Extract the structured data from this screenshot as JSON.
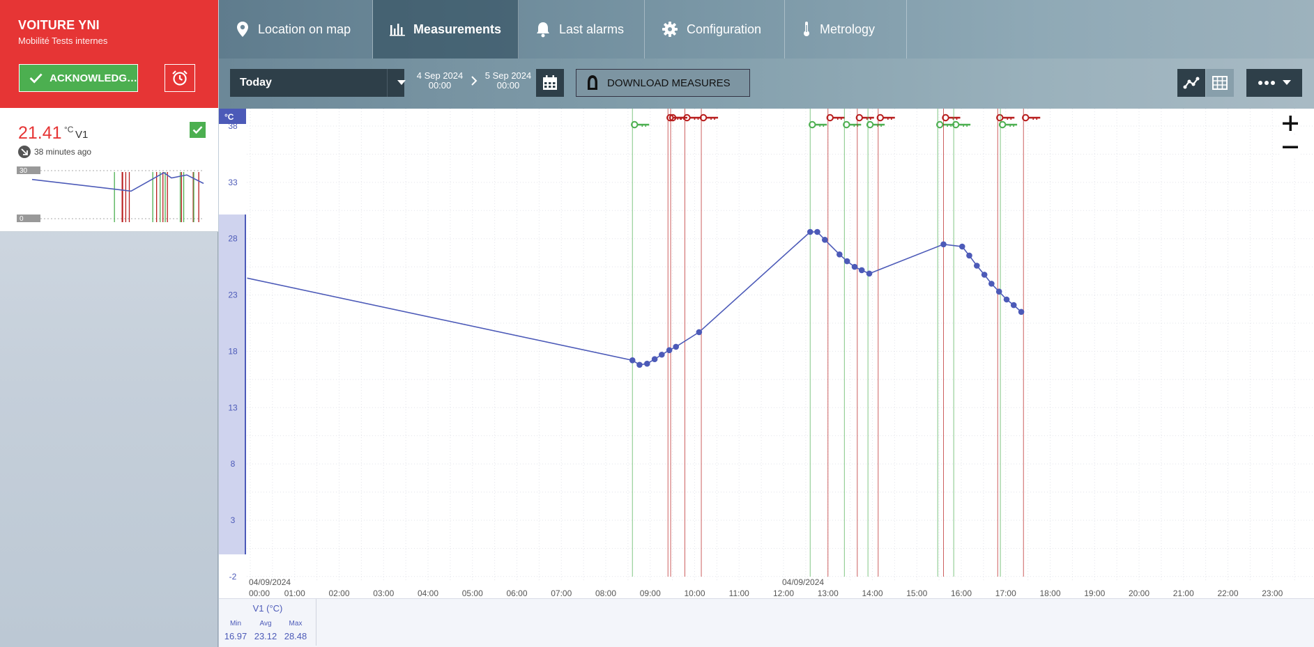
{
  "device": {
    "title": "VOITURE YNI",
    "subtitle": "Mobilité Tests internes",
    "acknowledge_label": "ACKNOWLEDG…",
    "header_color": "#e63535"
  },
  "sensor": {
    "value": "21.41",
    "unit": "°C",
    "name": "V1",
    "last_update": "38 minutes ago",
    "spark_max_label": "30",
    "spark_min_label": "0",
    "spark_values": [
      24.5,
      17.2,
      28.7,
      25.4,
      27.3,
      22.0
    ]
  },
  "nav": {
    "tabs": [
      {
        "label": "Location on map",
        "icon": "map-pin-icon"
      },
      {
        "label": "Measurements",
        "icon": "bar-chart-icon",
        "active": true
      },
      {
        "label": "Last alarms",
        "icon": "bell-icon"
      },
      {
        "label": "Configuration",
        "icon": "gear-icon"
      },
      {
        "label": "Metrology",
        "icon": "thermometer-icon"
      }
    ]
  },
  "toolbar": {
    "period": "Today",
    "start_date": "4 Sep 2024",
    "start_time": "00:00",
    "end_date": "5 Sep 2024",
    "end_time": "00:00",
    "download_label": "DOWNLOAD MEASURES"
  },
  "chart_data": {
    "type": "line",
    "y_unit_label": "°C",
    "ylim": [
      -2,
      40
    ],
    "y_ticks": [
      38,
      33,
      28,
      23,
      18,
      13,
      8,
      3,
      -2
    ],
    "x_range_hours": [
      0,
      24
    ],
    "x_tick_labels": [
      "00:00",
      "01:00",
      "02:00",
      "03:00",
      "04:00",
      "05:00",
      "06:00",
      "07:00",
      "08:00",
      "09:00",
      "10:00",
      "11:00",
      "12:00",
      "13:00",
      "14:00",
      "15:00",
      "16:00",
      "17:00",
      "18:00",
      "19:00",
      "20:00",
      "21:00",
      "22:00",
      "23:00"
    ],
    "x_date_labels": [
      {
        "hour": 0,
        "text": "04/09/2024"
      },
      {
        "hour": 12,
        "text": "04/09/2024"
      }
    ],
    "grid": true,
    "series_color": "#4c5ab8",
    "series": [
      {
        "name": "V1 (°C)",
        "x": [
          -0.1,
          8.6,
          8.76,
          8.93,
          9.1,
          9.26,
          9.43,
          9.58,
          10.1,
          12.6,
          12.76,
          12.93,
          13.26,
          13.43,
          13.6,
          13.76,
          13.93,
          15.6,
          16.02,
          16.18,
          16.35,
          16.52,
          16.68,
          16.85,
          17.02,
          17.18,
          17.35
        ],
        "y": [
          24.5,
          17.2,
          16.8,
          16.9,
          17.3,
          17.7,
          18.1,
          18.4,
          19.7,
          28.6,
          28.6,
          27.9,
          26.6,
          26.0,
          25.5,
          25.2,
          24.9,
          27.5,
          27.3,
          26.5,
          25.6,
          24.8,
          24.0,
          23.3,
          22.6,
          22.1,
          21.5
        ]
      }
    ],
    "alarm_events": [
      {
        "hour": 8.6,
        "state": "green"
      },
      {
        "hour": 9.4,
        "state": "red"
      },
      {
        "hour": 9.46,
        "state": "red"
      },
      {
        "hour": 9.78,
        "state": "red"
      },
      {
        "hour": 10.15,
        "state": "red"
      },
      {
        "hour": 12.6,
        "state": "green"
      },
      {
        "hour": 13.0,
        "state": "red"
      },
      {
        "hour": 13.37,
        "state": "green"
      },
      {
        "hour": 13.66,
        "state": "red"
      },
      {
        "hour": 13.9,
        "state": "green"
      },
      {
        "hour": 14.13,
        "state": "red"
      },
      {
        "hour": 15.47,
        "state": "green"
      },
      {
        "hour": 15.6,
        "state": "red"
      },
      {
        "hour": 15.83,
        "state": "green"
      },
      {
        "hour": 16.82,
        "state": "red"
      },
      {
        "hour": 16.88,
        "state": "green"
      },
      {
        "hour": 17.4,
        "state": "red"
      }
    ],
    "alarm_colors": {
      "green": "#4caf50",
      "red": "#b71c1c"
    }
  },
  "stats": {
    "series_label": "V1 (°C)",
    "min_label": "Min",
    "avg_label": "Avg",
    "max_label": "Max",
    "min": "16.97",
    "avg": "23.12",
    "max": "28.48"
  }
}
